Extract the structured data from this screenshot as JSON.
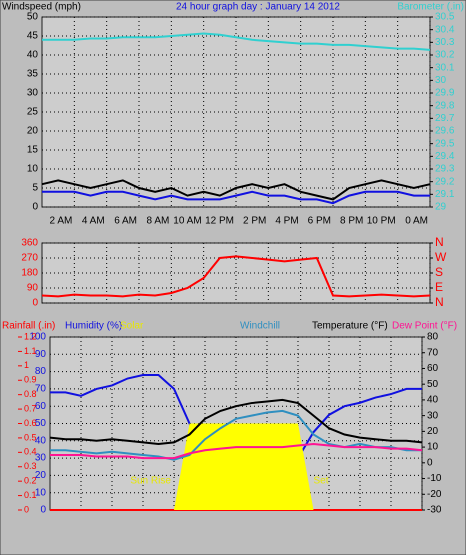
{
  "chart_data": [
    {
      "type": "line",
      "title": "24 hour graph day : January 14 2012",
      "ylabel": "Windspeed (mph)",
      "y2label": "Barometer (.in)",
      "x": [
        0,
        1,
        2,
        3,
        4,
        5,
        6,
        7,
        8,
        9,
        10,
        11,
        12,
        13,
        14,
        15,
        16,
        17,
        18,
        19,
        20,
        21,
        22,
        23,
        24
      ],
      "xlim": [
        0,
        24
      ],
      "xticks": [
        {
          "value": 2,
          "label": "2 AM"
        },
        {
          "value": 4,
          "label": "4 AM"
        },
        {
          "value": 6,
          "label": "6 AM"
        },
        {
          "value": 8,
          "label": "8 AM"
        },
        {
          "value": 10,
          "label": "10 AM"
        },
        {
          "value": 12,
          "label": "12 PM"
        },
        {
          "value": 14,
          "label": "2 PM"
        },
        {
          "value": 16,
          "label": "4 PM"
        },
        {
          "value": 18,
          "label": "6 PM"
        },
        {
          "value": 20,
          "label": "8 PM"
        },
        {
          "value": 22,
          "label": "10 PM"
        },
        {
          "value": 24,
          "label": "0 AM"
        }
      ],
      "ylim": [
        0,
        50
      ],
      "yticks": [
        0,
        5,
        10,
        15,
        20,
        25,
        30,
        35,
        40,
        45,
        50
      ],
      "y2lim": [
        29,
        30.5
      ],
      "y2ticks": [
        29,
        29.1,
        29.2,
        29.3,
        29.4,
        29.5,
        29.6,
        29.7,
        29.8,
        29.9,
        30,
        30.1,
        30.2,
        30.3,
        30.4,
        30.5
      ],
      "grid": true,
      "series": [
        {
          "color": "#000000",
          "values": [
            6,
            7,
            6,
            5,
            6,
            7,
            5,
            4,
            5,
            3,
            4,
            3,
            5,
            6,
            5,
            6,
            4,
            3,
            2,
            5,
            6,
            7,
            6,
            5,
            6
          ]
        },
        {
          "color": "#1010e0",
          "values": [
            4,
            4,
            4,
            3,
            4,
            4,
            3,
            2,
            3,
            2,
            2,
            2,
            3,
            4,
            3,
            3,
            2,
            2,
            1,
            3,
            4,
            4,
            4,
            3,
            3
          ]
        },
        {
          "color": "#30d0d0",
          "axis": "y2",
          "values": [
            30.32,
            30.32,
            30.32,
            30.33,
            30.33,
            30.34,
            30.34,
            30.34,
            30.35,
            30.36,
            30.37,
            30.36,
            30.34,
            30.32,
            30.31,
            30.3,
            30.29,
            30.29,
            30.28,
            30.28,
            30.27,
            30.26,
            30.25,
            30.25,
            30.24
          ]
        }
      ]
    },
    {
      "type": "line",
      "x": [
        0,
        1,
        2,
        3,
        4,
        5,
        6,
        7,
        8,
        9,
        10,
        11,
        12,
        13,
        14,
        15,
        16,
        17,
        18,
        19,
        20,
        21,
        22,
        23,
        24
      ],
      "xlim": [
        0,
        24
      ],
      "ylim": [
        0,
        360
      ],
      "yticks": [
        0,
        90,
        180,
        270,
        360
      ],
      "y2lim": [
        0,
        360
      ],
      "y2ticks": [
        {
          "value": 0,
          "label": "N"
        },
        {
          "value": 90,
          "label": "E"
        },
        {
          "value": 180,
          "label": "S"
        },
        {
          "value": 270,
          "label": "W"
        },
        {
          "value": 360,
          "label": "N"
        }
      ],
      "grid": true,
      "series": [
        {
          "color": "#ff0000",
          "values": [
            45,
            40,
            50,
            45,
            45,
            40,
            50,
            45,
            60,
            90,
            150,
            270,
            280,
            270,
            260,
            250,
            260,
            270,
            45,
            40,
            45,
            50,
            45,
            40,
            45
          ]
        }
      ]
    },
    {
      "type": "line",
      "x": [
        0,
        1,
        2,
        3,
        4,
        5,
        6,
        7,
        8,
        9,
        10,
        11,
        12,
        13,
        14,
        15,
        16,
        17,
        18,
        19,
        20,
        21,
        22,
        23,
        24
      ],
      "xlim": [
        0,
        24
      ],
      "ylim": [
        0,
        100
      ],
      "yticks": [
        0,
        10,
        20,
        30,
        40,
        50,
        60,
        70,
        80,
        90,
        100
      ],
      "y3lim": [
        0,
        1.2
      ],
      "y3ticks": [
        0,
        0.1,
        0.2,
        0.3,
        0.4,
        0.5,
        0.6,
        0.7,
        0.8,
        0.9,
        1,
        1.1,
        1.2
      ],
      "y2lim": [
        -30,
        80
      ],
      "y2ticks": [
        -30,
        -20,
        -10,
        0,
        10,
        20,
        30,
        40,
        50,
        60,
        70,
        80
      ],
      "grid": true,
      "annotations": [
        {
          "text": "Sun Rise",
          "x": 7.8
        },
        {
          "text": "Set",
          "x": 17
        }
      ],
      "series": [
        {
          "name": "Rainfall (.in)",
          "color": "#ff0000",
          "axis": "y3",
          "values": [
            0,
            0,
            0,
            0,
            0,
            0,
            0,
            0,
            0,
            0,
            0,
            0,
            0,
            0,
            0,
            0,
            0,
            0,
            0,
            0,
            0,
            0,
            0,
            0,
            0
          ]
        },
        {
          "name": "Humidity (%)",
          "color": "#1010e0",
          "values": [
            68,
            68,
            66,
            70,
            72,
            76,
            78,
            78,
            70,
            50,
            30,
            27,
            28,
            28,
            27,
            26,
            30,
            45,
            55,
            60,
            62,
            65,
            67,
            70,
            70
          ]
        },
        {
          "name": "Solar",
          "color": "#ffff00",
          "area": true,
          "values": [
            0,
            0,
            0,
            0,
            0,
            0,
            0,
            0,
            0,
            50,
            50,
            50,
            50,
            50,
            50,
            50,
            50,
            0,
            0,
            0,
            0,
            0,
            0,
            0,
            0
          ]
        },
        {
          "name": "Windchill",
          "color": "#2f8fc0",
          "axis": "y2",
          "values": [
            8,
            8,
            7,
            6,
            7,
            6,
            5,
            4,
            2,
            5,
            15,
            22,
            28,
            30,
            32,
            33,
            30,
            18,
            12,
            10,
            12,
            10,
            10,
            8,
            8
          ]
        },
        {
          "name": "Temperature (°F)",
          "color": "#000000",
          "axis": "y2",
          "values": [
            16,
            15,
            15,
            14,
            15,
            14,
            13,
            12,
            13,
            18,
            28,
            33,
            36,
            38,
            39,
            40,
            38,
            30,
            22,
            18,
            16,
            15,
            14,
            14,
            13
          ]
        },
        {
          "name": "Dew Point (°F)",
          "color": "#ff1493",
          "axis": "y2",
          "values": [
            5,
            5,
            5,
            4,
            4,
            4,
            3,
            3,
            3,
            6,
            8,
            9,
            10,
            10,
            10,
            10,
            11,
            12,
            11,
            10,
            10,
            10,
            9,
            9,
            8
          ]
        }
      ]
    }
  ]
}
